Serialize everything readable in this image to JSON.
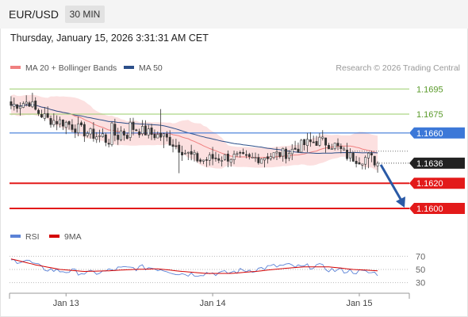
{
  "header": {
    "symbol": "EUR/USD",
    "timeframe": "30 MIN"
  },
  "date_line": "Thursday, January 15, 2026 3:31:31 AM CET",
  "legend": {
    "bb_label": "MA 20 + Bollinger Bands",
    "ma50_label": "MA 50",
    "rsi_label": "RSI",
    "rsi_ma_label": "9MA",
    "credit": "Research © 2026 Trading Central"
  },
  "colors": {
    "up": "#333333",
    "down": "#333333",
    "bb_fill": "#fbdada",
    "ma20": "#f08080",
    "ma50": "#2c4f8a",
    "level_green": "#9acd6a",
    "level_blue": "#3c78d8",
    "level_red": "#e31a1a",
    "price_box": "#222222",
    "arrow": "#2a5aa6",
    "rsi": "#5b82d6",
    "rsi_ma": "#d40000"
  },
  "chart_data": {
    "type": "candlestick",
    "y_range": [
      1.1588,
      1.1704
    ],
    "levels": [
      {
        "value": 1.1695,
        "label": "1.1695",
        "kind": "resistance",
        "color": "#9acd6a"
      },
      {
        "value": 1.1675,
        "label": "1.1675",
        "kind": "resistance",
        "color": "#9acd6a"
      },
      {
        "value": 1.166,
        "label": "1.1660",
        "kind": "pivot",
        "color": "#3c78d8"
      },
      {
        "value": 1.162,
        "label": "1.1620",
        "kind": "support",
        "color": "#e31a1a"
      },
      {
        "value": 1.16,
        "label": "1.1600",
        "kind": "support",
        "color": "#e31a1a"
      }
    ],
    "last_price": {
      "value": 1.1636,
      "label": "1.1636"
    },
    "target_arrow": {
      "from_value": 1.1636,
      "to_value": 1.16
    },
    "x_ticks": [
      {
        "index": 18,
        "label": "Jan 13"
      },
      {
        "index": 66,
        "label": "Jan 14"
      },
      {
        "index": 114,
        "label": "Jan 15"
      }
    ],
    "candle_count": 121,
    "close_path": [
      [
        0,
        1.1682
      ],
      [
        6,
        1.1685
      ],
      [
        8,
        1.1678
      ],
      [
        12,
        1.1671
      ],
      [
        18,
        1.1668
      ],
      [
        24,
        1.1661
      ],
      [
        30,
        1.1656
      ],
      [
        40,
        1.1664
      ],
      [
        46,
        1.1659
      ],
      [
        50,
        1.1657
      ],
      [
        54,
        1.165
      ],
      [
        58,
        1.1643
      ],
      [
        62,
        1.1638
      ],
      [
        66,
        1.164
      ],
      [
        72,
        1.1641
      ],
      [
        78,
        1.1639
      ],
      [
        84,
        1.1642
      ],
      [
        90,
        1.1644
      ],
      [
        96,
        1.1651
      ],
      [
        101,
        1.1654
      ],
      [
        106,
        1.165
      ],
      [
        110,
        1.1642
      ],
      [
        114,
        1.1639
      ],
      [
        117,
        1.1641
      ],
      [
        120,
        1.1636
      ]
    ],
    "rsi_range": [
      20,
      80
    ],
    "rsi_ticks": [
      70,
      50,
      30
    ],
    "rsi_path": [
      [
        0,
        63
      ],
      [
        5,
        64
      ],
      [
        10,
        52
      ],
      [
        15,
        48
      ],
      [
        20,
        47
      ],
      [
        25,
        44
      ],
      [
        30,
        46
      ],
      [
        35,
        51
      ],
      [
        40,
        52
      ],
      [
        45,
        53
      ],
      [
        50,
        50
      ],
      [
        55,
        44
      ],
      [
        60,
        43
      ],
      [
        65,
        45
      ],
      [
        70,
        44
      ],
      [
        75,
        48
      ],
      [
        80,
        50
      ],
      [
        85,
        54
      ],
      [
        90,
        56
      ],
      [
        95,
        53
      ],
      [
        100,
        56
      ],
      [
        105,
        49
      ],
      [
        110,
        48
      ],
      [
        115,
        46
      ],
      [
        120,
        44
      ]
    ],
    "rsi_ma_path": [
      [
        0,
        66
      ],
      [
        8,
        57
      ],
      [
        16,
        50
      ],
      [
        24,
        47
      ],
      [
        32,
        48
      ],
      [
        40,
        50
      ],
      [
        48,
        51
      ],
      [
        56,
        47
      ],
      [
        64,
        44
      ],
      [
        72,
        44
      ],
      [
        80,
        47
      ],
      [
        88,
        51
      ],
      [
        96,
        54
      ],
      [
        104,
        54
      ],
      [
        112,
        50
      ],
      [
        120,
        48
      ]
    ]
  }
}
